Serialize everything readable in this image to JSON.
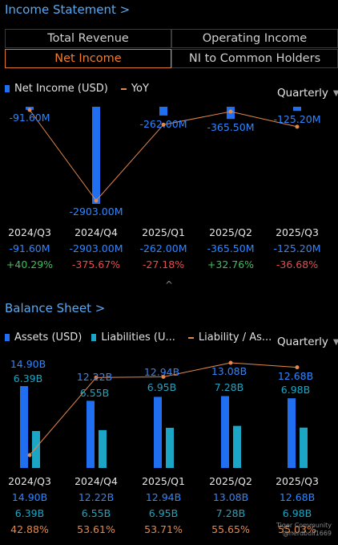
{
  "income": {
    "title": "Income Statement >",
    "tabs": [
      "Total Revenue",
      "Operating Income",
      "Net Income",
      "NI to Common Holders"
    ],
    "active_tab": "Net Income",
    "legend": {
      "bar": "Net Income (USD)",
      "line": "YoY"
    },
    "period": "Quarterly",
    "bar_labels": [
      "-91.60M",
      "-2903.00M",
      "-262.00M",
      "-365.50M",
      "-125.20M"
    ],
    "quarters": [
      "2024/Q3",
      "2024/Q4",
      "2025/Q1",
      "2025/Q2",
      "2025/Q3"
    ],
    "values_text": [
      "-91.60M",
      "-2903.00M",
      "-262.00M",
      "-365.50M",
      "-125.20M"
    ],
    "yoy_text": [
      "+40.29%",
      "-375.67%",
      "-27.18%",
      "+32.76%",
      "-36.68%"
    ]
  },
  "balance": {
    "title": "Balance Sheet >",
    "legend": {
      "assets": "Assets (USD)",
      "liabilities": "Liabilities (U...",
      "ratio": "Liability / As..."
    },
    "period": "Quarterly",
    "assets_labels": [
      "14.90B",
      "12.22B",
      "12.94B",
      "13.08B",
      "12.68B"
    ],
    "liab_labels": [
      "6.39B",
      "6.55B",
      "6.95B",
      "7.28B",
      "6.98B"
    ],
    "quarters": [
      "2024/Q3",
      "2024/Q4",
      "2025/Q1",
      "2025/Q2",
      "2025/Q3"
    ],
    "assets_text": [
      "14.90B",
      "12.22B",
      "12.94B",
      "13.08B",
      "12.68B"
    ],
    "liab_text": [
      "6.39B",
      "6.55B",
      "6.95B",
      "7.28B",
      "6.98B"
    ],
    "ratio_text": [
      "42.88%",
      "53.61%",
      "53.71%",
      "55.65%",
      "55.03%"
    ]
  },
  "colors": {
    "blue": "#1f6ff0",
    "teal": "#1aa6c4",
    "orange": "#e5884a",
    "green": "#3fbf5a",
    "red": "#e84b4b",
    "label_blue": "#2f86ff"
  },
  "chart_data": [
    {
      "type": "bar",
      "categories": [
        "2024/Q3",
        "2024/Q4",
        "2025/Q1",
        "2025/Q2",
        "2025/Q3"
      ],
      "series": [
        {
          "name": "Net Income (USD)",
          "values": [
            -91.6,
            -2903.0,
            -262.0,
            -365.5,
            -125.2
          ]
        },
        {
          "name": "YoY",
          "values": [
            40.29,
            -375.67,
            -27.18,
            32.76,
            -36.68
          ]
        }
      ]
    },
    {
      "type": "bar",
      "categories": [
        "2024/Q3",
        "2024/Q4",
        "2025/Q1",
        "2025/Q2",
        "2025/Q3"
      ],
      "series": [
        {
          "name": "Assets (USD)",
          "values": [
            14.9,
            12.22,
            12.94,
            13.08,
            12.68
          ]
        },
        {
          "name": "Liabilities (U...",
          "values": [
            6.39,
            6.55,
            6.95,
            7.28,
            6.98
          ]
        },
        {
          "name": "Liability / As...",
          "values": [
            42.88,
            53.61,
            53.71,
            55.65,
            55.03
          ]
        }
      ]
    }
  ],
  "watermark": [
    "Tiger Community",
    "@nerdbull1669"
  ]
}
